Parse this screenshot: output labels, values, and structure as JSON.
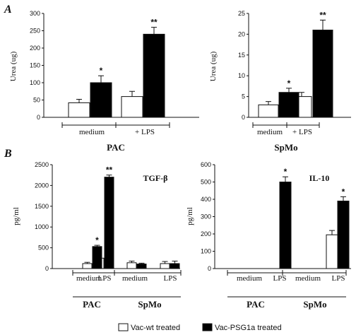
{
  "panels": {
    "a": "A",
    "b": "B"
  },
  "legend": {
    "items": [
      {
        "label": "Vac-wt treated",
        "color": "#ffffff"
      },
      {
        "label": "Vac-PSG1a treated",
        "color": "#000000"
      }
    ]
  },
  "chart_data": [
    {
      "id": "a_pac",
      "type": "bar",
      "ylabel": "Urea (ug)",
      "ylim": [
        0,
        300
      ],
      "yticks": [
        0,
        50,
        100,
        150,
        200,
        250,
        300
      ],
      "group_labels": [
        "medium",
        "+ LPS"
      ],
      "xlabel": "PAC",
      "series": [
        {
          "values": [
            42,
            60
          ],
          "errors": [
            10,
            15
          ],
          "color": "#ffffff"
        },
        {
          "values": [
            100,
            240
          ],
          "errors": [
            20,
            20
          ],
          "color": "#000000"
        }
      ],
      "annotations": [
        {
          "group": 0,
          "series": 1,
          "text": "*"
        },
        {
          "group": 1,
          "series": 1,
          "text": "**"
        }
      ]
    },
    {
      "id": "a_spmo",
      "type": "bar",
      "ylabel": "Urea (ug)",
      "ylim": [
        0,
        25
      ],
      "yticks": [
        0,
        5,
        10,
        15,
        20,
        25
      ],
      "group_labels": [
        "medium",
        "+ LPS"
      ],
      "xlabel": "SpMo",
      "series": [
        {
          "values": [
            3,
            5
          ],
          "errors": [
            0.8,
            1
          ],
          "color": "#ffffff"
        },
        {
          "values": [
            6,
            21
          ],
          "errors": [
            1,
            2.4
          ],
          "color": "#000000"
        }
      ],
      "annotations": [
        {
          "group": 0,
          "series": 1,
          "text": "*"
        },
        {
          "group": 1,
          "series": 1,
          "text": "**"
        }
      ]
    },
    {
      "id": "b_tgf",
      "type": "bar",
      "title": "TGF-β",
      "ylabel": "pg/ml",
      "ylim": [
        0,
        2500
      ],
      "yticks": [
        0,
        500,
        1000,
        1500,
        2000,
        2500
      ],
      "group_labels": [
        "medium",
        "LPS",
        "medium",
        "LPS"
      ],
      "groups": [
        "PAC",
        "SpMo"
      ],
      "series": [
        {
          "values": [
            120,
            250,
            140,
            120
          ],
          "errors": [
            30,
            40,
            40,
            50
          ],
          "color": "#ffffff"
        },
        {
          "values": [
            530,
            2200,
            110,
            120
          ],
          "errors": [
            30,
            50,
            20,
            60
          ],
          "color": "#000000"
        }
      ],
      "annotations": [
        {
          "group": 0,
          "series": 1,
          "text": "*"
        },
        {
          "group": 1,
          "series": 1,
          "text": "**"
        }
      ]
    },
    {
      "id": "b_il10",
      "type": "bar",
      "title": "IL-10",
      "ylabel": "pg/ml",
      "ylim": [
        0,
        600
      ],
      "yticks": [
        0,
        100,
        200,
        300,
        400,
        500,
        600
      ],
      "group_labels": [
        "medium",
        "LPS",
        "medium",
        "LPS"
      ],
      "groups": [
        "PAC",
        "SpMo"
      ],
      "series": [
        {
          "values": [
            0,
            0,
            0,
            195
          ],
          "errors": [
            0,
            0,
            0,
            25
          ],
          "color": "#ffffff"
        },
        {
          "values": [
            0,
            500,
            0,
            390
          ],
          "errors": [
            0,
            30,
            0,
            25
          ],
          "color": "#000000"
        }
      ],
      "annotations": [
        {
          "group": 1,
          "series": 1,
          "text": "*"
        },
        {
          "group": 3,
          "series": 1,
          "text": "*"
        }
      ]
    }
  ]
}
